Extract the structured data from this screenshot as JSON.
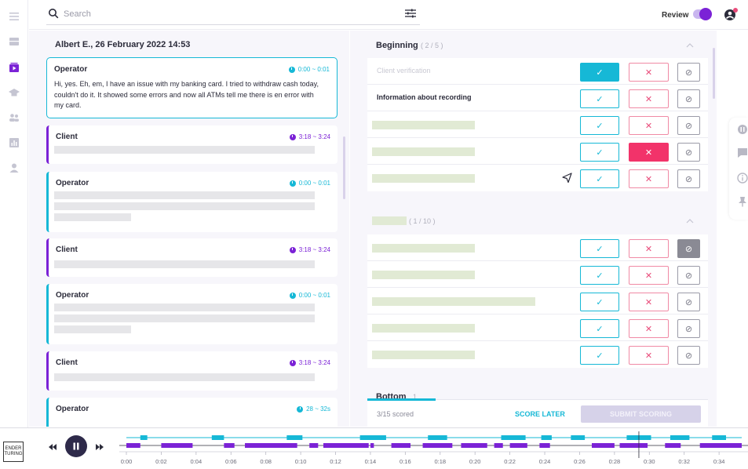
{
  "app": {
    "logo_text": "ENDER TURING"
  },
  "search": {
    "placeholder": "Search"
  },
  "review": {
    "label": "Review",
    "enabled": true
  },
  "conversation": {
    "title": "Albert E., 26 February 2022 14:53",
    "messages": [
      {
        "speaker": "Operator",
        "time": "0:00 ~ 0:01",
        "text": "Hi, yes. Eh, em, I have an issue with my banking card. I tried to withdraw cash today, couldn't do it. It showed some errors and now all ATMs tell me there is en error with my card."
      },
      {
        "speaker": "Client",
        "time": "3:18 ~ 3:24"
      },
      {
        "speaker": "Operator",
        "time": "0:00 ~ 0:01"
      },
      {
        "speaker": "Client",
        "time": "3:18 ~ 3:24"
      },
      {
        "speaker": "Operator",
        "time": "0:00 ~ 0:01"
      },
      {
        "speaker": "Client",
        "time": "3:18 ~ 3:24"
      },
      {
        "speaker": "Operator",
        "time": "28 ~ 32s"
      }
    ]
  },
  "scoring": {
    "sections": [
      {
        "title": "Beginning",
        "count": "( 2 / 5 )",
        "rows": [
          {
            "label": "Client verification",
            "state": "yes"
          },
          {
            "label": "Information about recording",
            "state": null
          },
          {
            "label": "",
            "state": null
          },
          {
            "label": "",
            "state": "no"
          },
          {
            "label": "",
            "state": null
          }
        ]
      },
      {
        "title": "",
        "count": "( 1 / 10 )",
        "rows": [
          {
            "label": "",
            "state": "na"
          },
          {
            "label": "",
            "state": null
          },
          {
            "label": "",
            "state": null
          },
          {
            "label": "",
            "state": null
          },
          {
            "label": "",
            "state": null
          }
        ]
      },
      {
        "title": "Bottom",
        "count": "1",
        "rows": []
      }
    ],
    "yes_symbol": "✓",
    "no_symbol": "✕",
    "na_symbol": "⊘",
    "scored_text": "3/15 scored",
    "score_later": "SCORE LATER",
    "submit": "SUBMIT SCORING",
    "progress": 0.2
  },
  "player": {
    "playing": true,
    "ticks": [
      "0:00",
      "0:02",
      "0:04",
      "0:06",
      "0:08",
      "0:10",
      "0:12",
      "0:14",
      "0:16",
      "0:18",
      "0:20",
      "0:22",
      "0:24",
      "0:26",
      "0:28",
      "0:30",
      "0:32",
      "0:34"
    ],
    "operator_segments": [
      [
        0.8,
        1.2
      ],
      [
        4.9,
        5.6
      ],
      [
        9.2,
        10.1
      ],
      [
        13.4,
        14.9
      ],
      [
        17.3,
        18.4
      ],
      [
        21.5,
        22.9
      ],
      [
        23.8,
        24.4
      ],
      [
        25.5,
        26.3
      ],
      [
        28.7,
        30.1
      ],
      [
        31.2,
        32.3
      ],
      [
        33.6,
        34.4
      ]
    ],
    "client_segments": [
      [
        0.0,
        0.8
      ],
      [
        2.0,
        3.8
      ],
      [
        5.6,
        6.2
      ],
      [
        6.8,
        9.8
      ],
      [
        10.5,
        11.0
      ],
      [
        11.3,
        13.9
      ],
      [
        14.0,
        14.2
      ],
      [
        15.2,
        16.3
      ],
      [
        17.0,
        18.7
      ],
      [
        19.2,
        20.7
      ],
      [
        21.1,
        21.6
      ],
      [
        22.0,
        23.0
      ],
      [
        23.7,
        24.3
      ],
      [
        26.7,
        28.0
      ],
      [
        28.3,
        29.9
      ],
      [
        30.9,
        31.8
      ],
      [
        32.9,
        35.3
      ]
    ],
    "playhead": 29.4,
    "duration": 35.3,
    "colors": {
      "operator": "#16b8d6",
      "client": "#7b22d6"
    }
  },
  "colors": {
    "accent_cyan": "#16b8d6",
    "accent_purple": "#7b22d6",
    "danger_pink": "#f2336a"
  }
}
